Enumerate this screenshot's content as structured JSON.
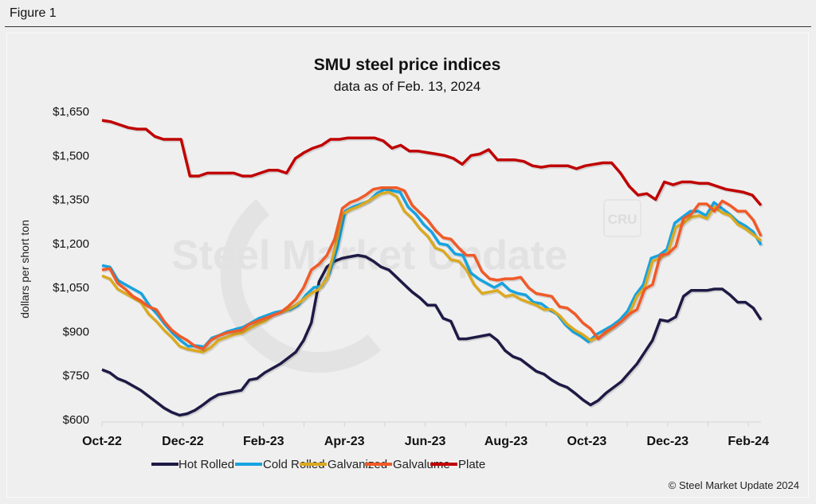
{
  "figure_label": "Figure 1",
  "chart_data": {
    "type": "line",
    "title": "SMU steel price indices",
    "subtitle": "data as of Feb. 13, 2024",
    "xlabel": "",
    "ylabel": "dollars per short ton",
    "ylim": [
      600,
      1650
    ],
    "yticks": [
      600,
      750,
      900,
      1050,
      1200,
      1350,
      1500,
      1650
    ],
    "ytick_labels": [
      "$600",
      "$750",
      "$900",
      "$1,050",
      "$1,200",
      "$1,350",
      "$1,500",
      "$1,650"
    ],
    "xtick_labels": [
      "Oct-22",
      "Dec-22",
      "Feb-23",
      "Apr-23",
      "Jun-23",
      "Aug-23",
      "Oct-23",
      "Dec-23",
      "Feb-24"
    ],
    "x_frequency": "weekly",
    "grid": false,
    "legend_position": "bottom",
    "watermark": "Steel Market Update",
    "watermark_badge": "CRU",
    "credit": "© Steel Market Update 2024",
    "series": [
      {
        "name": "Hot Rolled",
        "color": "#1e1a45",
        "values": [
          770,
          760,
          740,
          730,
          715,
          700,
          680,
          660,
          640,
          625,
          615,
          620,
          632,
          650,
          670,
          685,
          690,
          695,
          700,
          735,
          740,
          760,
          775,
          790,
          810,
          830,
          870,
          930,
          1070,
          1120,
          1140,
          1150,
          1155,
          1160,
          1155,
          1140,
          1120,
          1110,
          1085,
          1060,
          1035,
          1015,
          990,
          990,
          945,
          935,
          875,
          875,
          880,
          885,
          890,
          870,
          835,
          815,
          805,
          785,
          765,
          755,
          735,
          720,
          710,
          690,
          668,
          650,
          665,
          690,
          710,
          730,
          760,
          790,
          830,
          870,
          940,
          935,
          950,
          1020,
          1040,
          1040,
          1040,
          1045,
          1045,
          1025,
          1000,
          1000,
          980,
          940
        ]
      },
      {
        "name": "Cold Rolled",
        "color": "#17a3e0",
        "values": [
          1125,
          1120,
          1075,
          1060,
          1045,
          1030,
          990,
          960,
          925,
          895,
          870,
          850,
          852,
          848,
          878,
          888,
          900,
          908,
          915,
          930,
          945,
          955,
          965,
          970,
          975,
          990,
          1025,
          1050,
          1055,
          1100,
          1185,
          1310,
          1325,
          1335,
          1345,
          1370,
          1385,
          1380,
          1375,
          1325,
          1300,
          1265,
          1240,
          1200,
          1195,
          1165,
          1160,
          1100,
          1080,
          1065,
          1050,
          1065,
          1040,
          1030,
          1025,
          1000,
          995,
          975,
          960,
          925,
          900,
          885,
          865,
          890,
          905,
          920,
          940,
          970,
          1025,
          1060,
          1150,
          1160,
          1180,
          1270,
          1290,
          1310,
          1310,
          1295,
          1340,
          1320,
          1300,
          1275,
          1260,
          1240,
          1195
        ]
      },
      {
        "name": "Galvanized",
        "color": "#dba921",
        "values": [
          1090,
          1080,
          1045,
          1030,
          1015,
          1000,
          960,
          935,
          905,
          880,
          850,
          840,
          835,
          830,
          845,
          870,
          880,
          890,
          895,
          910,
          925,
          935,
          955,
          965,
          975,
          990,
          1010,
          1030,
          1045,
          1080,
          1180,
          1300,
          1315,
          1325,
          1340,
          1355,
          1370,
          1375,
          1360,
          1310,
          1285,
          1250,
          1225,
          1185,
          1175,
          1145,
          1140,
          1110,
          1060,
          1030,
          1035,
          1040,
          1020,
          1025,
          1010,
          1000,
          990,
          975,
          975,
          955,
          925,
          905,
          890,
          870,
          880,
          895,
          915,
          935,
          960,
          1020,
          1050,
          1140,
          1150,
          1170,
          1255,
          1270,
          1290,
          1295,
          1285,
          1325,
          1305,
          1295,
          1265,
          1250,
          1230,
          1210
        ]
      },
      {
        "name": "Galvalume",
        "color": "#f05a28",
        "values": [
          1110,
          1115,
          1065,
          1045,
          1020,
          1005,
          985,
          975,
          935,
          905,
          885,
          870,
          850,
          840,
          870,
          885,
          895,
          900,
          905,
          925,
          935,
          945,
          955,
          965,
          985,
          1010,
          1050,
          1110,
          1130,
          1160,
          1215,
          1320,
          1340,
          1350,
          1365,
          1385,
          1390,
          1390,
          1390,
          1380,
          1330,
          1305,
          1280,
          1245,
          1220,
          1215,
          1185,
          1160,
          1160,
          1105,
          1080,
          1075,
          1080,
          1080,
          1085,
          1050,
          1030,
          1025,
          1020,
          985,
          980,
          960,
          930,
          910,
          875,
          900,
          915,
          935,
          960,
          975,
          1045,
          1060,
          1160,
          1165,
          1190,
          1285,
          1300,
          1335,
          1335,
          1310,
          1345,
          1330,
          1310,
          1310,
          1280,
          1225
        ]
      },
      {
        "name": "Plate",
        "color": "#c00000",
        "values": [
          1620,
          1615,
          1605,
          1595,
          1590,
          1590,
          1565,
          1555,
          1555,
          1555,
          1430,
          1430,
          1440,
          1440,
          1440,
          1440,
          1430,
          1430,
          1440,
          1450,
          1450,
          1440,
          1490,
          1510,
          1525,
          1535,
          1555,
          1555,
          1560,
          1560,
          1560,
          1560,
          1550,
          1525,
          1535,
          1515,
          1515,
          1510,
          1505,
          1500,
          1490,
          1470,
          1500,
          1505,
          1520,
          1485,
          1485,
          1485,
          1480,
          1465,
          1460,
          1465,
          1465,
          1465,
          1455,
          1465,
          1470,
          1475,
          1475,
          1440,
          1395,
          1365,
          1370,
          1350,
          1410,
          1400,
          1410,
          1410,
          1405,
          1405,
          1395,
          1385,
          1380,
          1375,
          1365,
          1330
        ]
      }
    ]
  }
}
